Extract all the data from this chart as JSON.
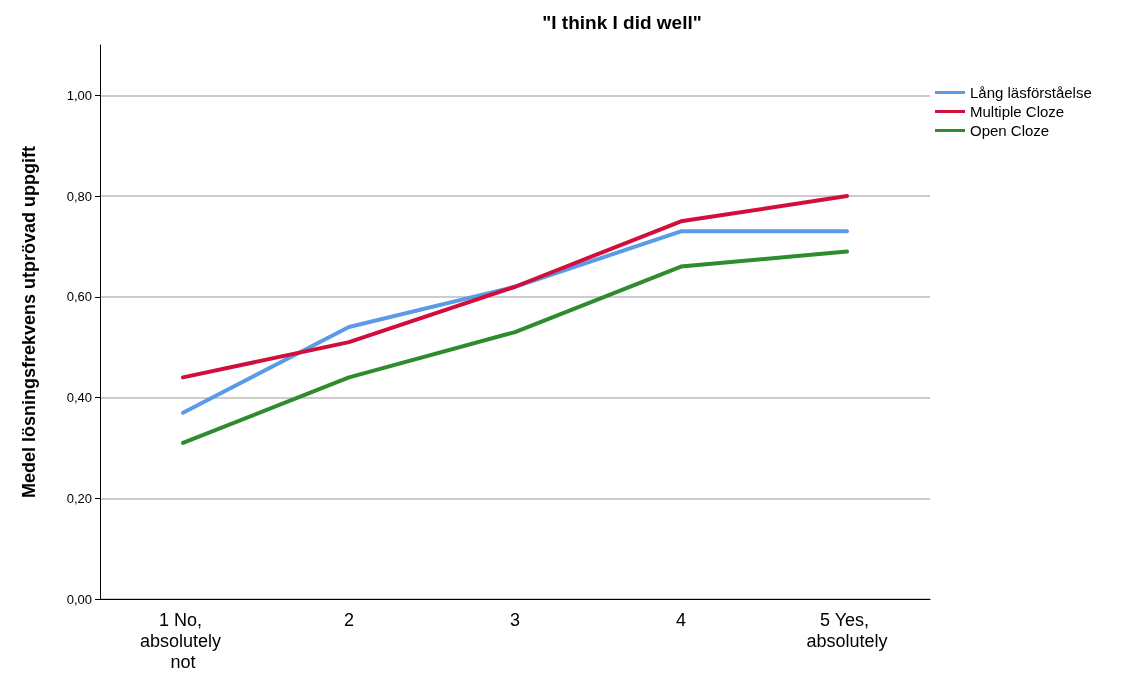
{
  "chart_data": {
    "type": "line",
    "title": "\"I think I did well\"",
    "ylabel": "Medel lösningsfrekvens utprövad uppgift",
    "categories": [
      "1 No, absolutely not",
      "2",
      "3",
      "4",
      "5 Yes, absolutely"
    ],
    "series": [
      {
        "name": "Lång läsförståelse",
        "color": "#5b9ae6",
        "values": [
          0.37,
          0.54,
          0.62,
          0.73,
          0.73
        ]
      },
      {
        "name": "Multiple Cloze",
        "color": "#d0103a",
        "values": [
          0.44,
          0.51,
          0.62,
          0.75,
          0.8
        ]
      },
      {
        "name": "Open Cloze",
        "color": "#2e8b2e",
        "values": [
          0.31,
          0.44,
          0.53,
          0.66,
          0.69
        ]
      }
    ],
    "ylim": [
      0,
      1.1
    ],
    "yticks": [
      {
        "value": 0,
        "label": "0,00"
      },
      {
        "value": 0.2,
        "label": "0,20"
      },
      {
        "value": 0.4,
        "label": "0,40"
      },
      {
        "value": 0.6,
        "label": "0,60"
      },
      {
        "value": 0.8,
        "label": "0,80"
      },
      {
        "value": 1,
        "label": "1,00"
      }
    ],
    "grid": "y",
    "legend": "top right",
    "marker": "none",
    "line_style": "solid"
  }
}
